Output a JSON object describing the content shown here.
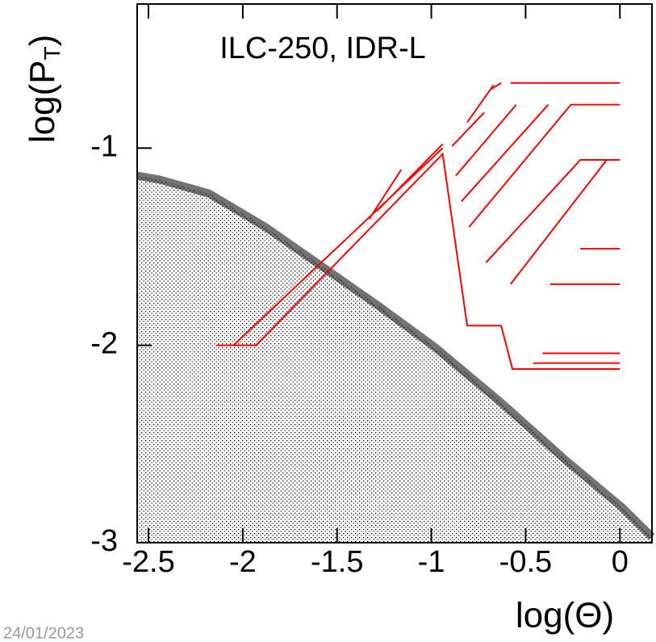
{
  "chart_data": {
    "type": "scatter",
    "title": "ILC-250, IDR-L",
    "xlabel": "log(Θ)",
    "ylabel": [
      "log(P",
      "T",
      ")"
    ],
    "footer": "24/01/2023",
    "xlim": [
      -2.56,
      0.17
    ],
    "ylim": [
      -3,
      -0.27
    ],
    "xticks": [
      -2.5,
      -2,
      -1.5,
      -1,
      -0.5,
      0
    ],
    "yticks": [
      -3,
      -2,
      -1
    ],
    "region": {
      "color": "#000000",
      "x": [
        -2.56,
        -2.44,
        -2.18,
        -1.88,
        -1.58,
        -1.28,
        -0.98,
        -0.63,
        -0.29,
        0.01,
        0.17
      ],
      "y": [
        -1.14,
        -1.16,
        -1.23,
        -1.4,
        -1.6,
        -1.8,
        -2.01,
        -2.29,
        -2.58,
        -2.82,
        -2.97
      ]
    },
    "series": [
      {
        "color": "#ff0000",
        "x": [
          -2.14,
          -1.93,
          -0.94,
          -0.81,
          -0.63,
          -0.57,
          0,
          null,
          -2.05,
          -0.94,
          null,
          -1.33,
          -1.16,
          null,
          -1.29,
          -0.94,
          null,
          -0.89,
          -0.72,
          null,
          -0.81,
          -0.67,
          null,
          -0.68,
          -0.63,
          null,
          -0.58,
          0,
          null,
          -0.87,
          -0.55,
          null,
          -0.84,
          -0.38,
          null,
          -0.8,
          -0.26,
          0,
          null,
          -0.71,
          -0.21,
          0,
          null,
          -0.58,
          -0.07,
          null,
          -0.21,
          0,
          null,
          -0.37,
          0,
          null,
          -0.41,
          0,
          null,
          -0.46,
          0
        ],
        "y": [
          -2,
          -2,
          -1.03,
          -1.9,
          -1.9,
          -2.12,
          -2.12,
          null,
          -2,
          -1,
          null,
          -1.36,
          -1.11,
          null,
          -1.32,
          -0.98,
          null,
          -0.99,
          -0.82,
          null,
          -0.87,
          -0.68,
          null,
          -0.7,
          -0.67,
          null,
          -0.67,
          -0.67,
          null,
          -1.14,
          -0.78,
          null,
          -1.27,
          -0.78,
          null,
          -1.4,
          -0.78,
          -0.78,
          null,
          -1.58,
          -1.06,
          -1.06,
          null,
          -1.69,
          -1.06,
          null,
          -1.51,
          -1.51,
          null,
          -1.69,
          -1.69,
          null,
          -2.04,
          -2.04,
          null,
          -2.09,
          -2.09
        ]
      }
    ]
  }
}
